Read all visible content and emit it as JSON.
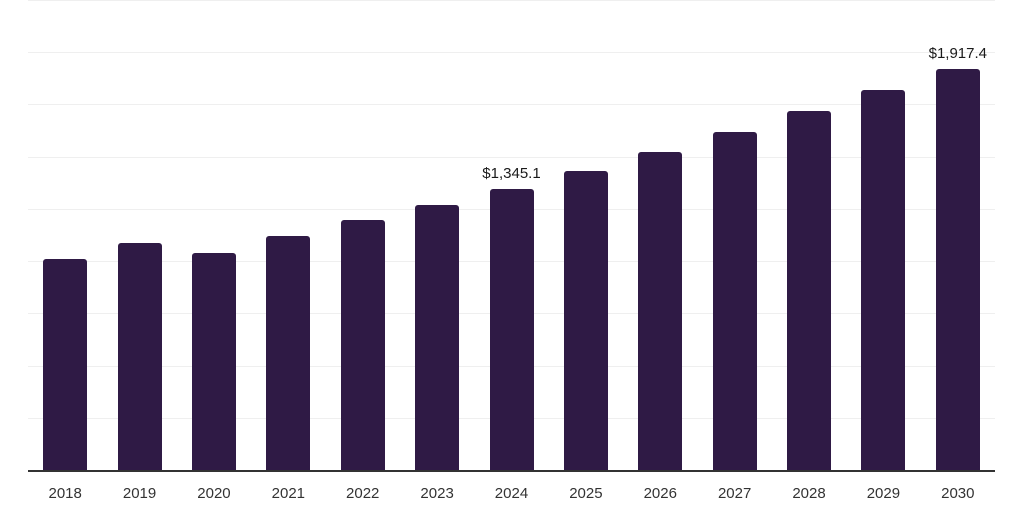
{
  "chart_data": {
    "type": "bar",
    "title": "",
    "xlabel": "",
    "ylabel": "",
    "categories": [
      "2018",
      "2019",
      "2020",
      "2021",
      "2022",
      "2023",
      "2024",
      "2025",
      "2026",
      "2027",
      "2028",
      "2029",
      "2030"
    ],
    "values": [
      1010,
      1087,
      1038,
      1118,
      1195,
      1268,
      1345.1,
      1430,
      1524,
      1620,
      1720,
      1820,
      1917.4
    ],
    "data_labels": [
      "",
      "",
      "",
      "",
      "",
      "",
      "$1,345.1",
      "",
      "",
      "",
      "",
      "",
      "$1,917.4"
    ],
    "labeled_points": [
      {
        "category": "2024",
        "label": "$1,345.1",
        "value": 1345.1
      },
      {
        "category": "2030",
        "label": "$1,917.4",
        "value": 1917.4
      }
    ],
    "ylim": [
      0,
      2250
    ],
    "gridline_step": 250,
    "grid": true,
    "legend": "none",
    "y_axis_labels_visible": false,
    "colors": {
      "bar_fill": "#2f1a45",
      "axis_line": "#333333",
      "gridline": "#efefef",
      "data_label_text": "#1a1a1a",
      "tick_label_text": "#333333",
      "background": "#ffffff"
    }
  }
}
